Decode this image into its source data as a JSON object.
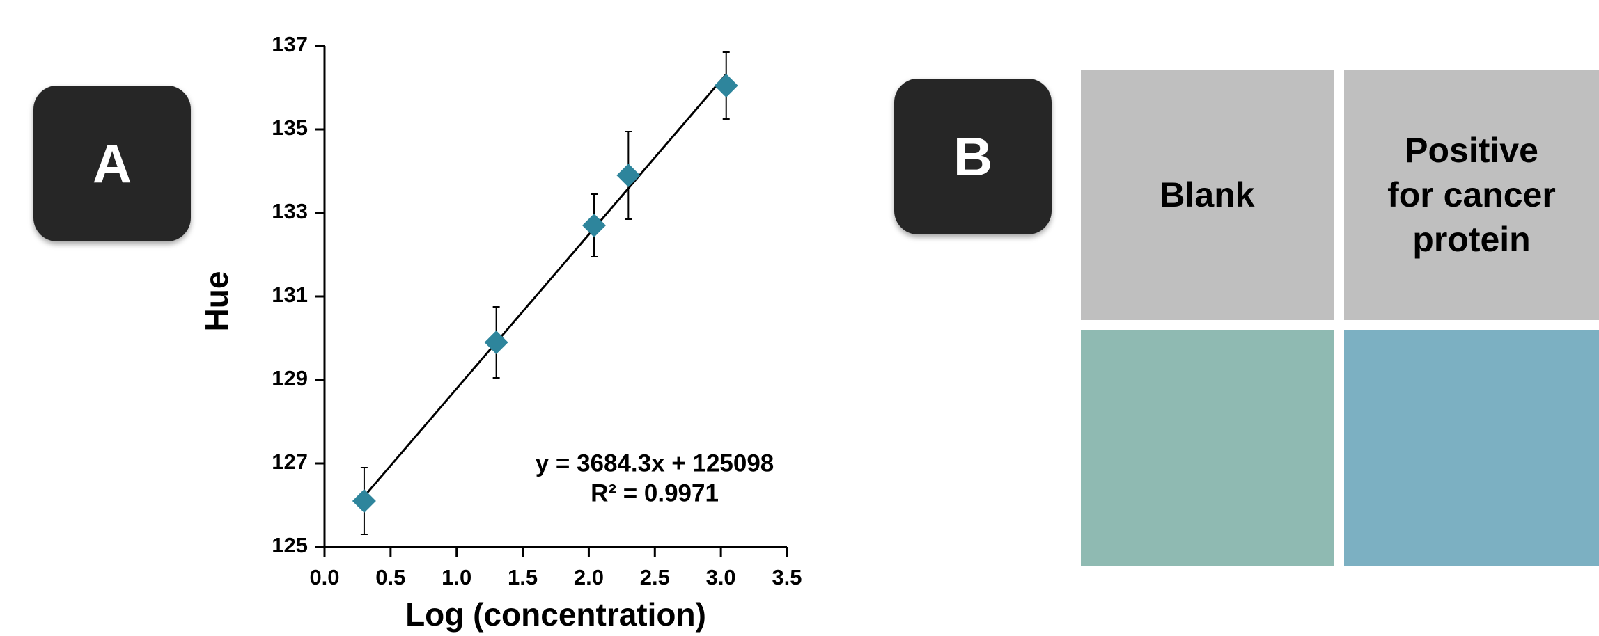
{
  "chart_data": {
    "type": "scatter",
    "x_label": "Log (concentration)",
    "y_label": "Hue",
    "x": [
      0.3,
      1.3,
      2.04,
      2.3,
      3.04
    ],
    "series": [
      {
        "color": "#2e859c",
        "values": [
          126.1,
          129.9,
          132.7,
          133.9,
          136.05
        ],
        "errors": [
          0.8,
          0.85,
          0.75,
          1.05,
          0.8
        ]
      }
    ],
    "trendline": true,
    "annotations": [
      "y = 3684.3x + 125098",
      "R² = 0.9971"
    ],
    "xlim": [
      0,
      3.5
    ],
    "xticks": [
      {
        "value": 0,
        "label": "0.0"
      },
      0.5,
      {
        "value": 1,
        "label": "1.0"
      },
      1.5,
      {
        "value": 2,
        "label": "2.0"
      },
      2.5,
      {
        "value": 3,
        "label": "3.0"
      },
      3.5
    ],
    "ylim": [
      125,
      137
    ],
    "yticks": [
      125,
      127,
      129,
      131,
      133,
      135,
      137
    ]
  },
  "panel_labels": [
    "A",
    "B"
  ],
  "panel_b": {
    "headers": [
      "Blank",
      "Positive for cancer protein"
    ],
    "swatch_colors": [
      "#8fbab2",
      "#7cb0c2"
    ]
  }
}
